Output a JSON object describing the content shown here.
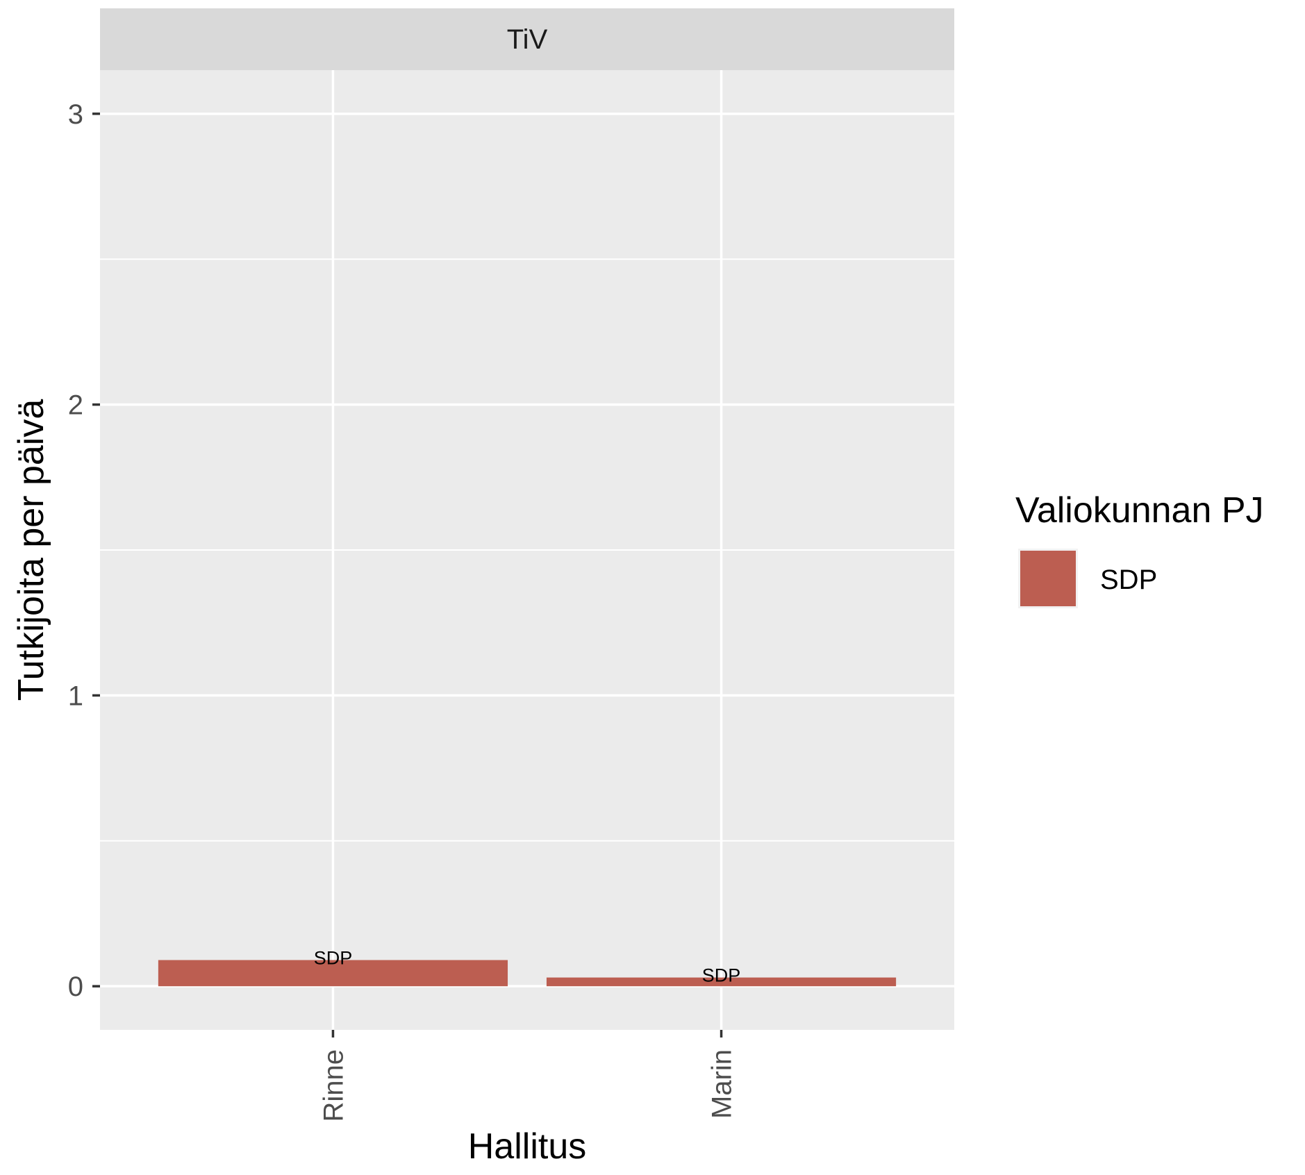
{
  "chart_data": {
    "type": "bar",
    "facet": "TiV",
    "categories": [
      "Rinne",
      "Marin"
    ],
    "series": [
      {
        "name": "SDP",
        "values": [
          0.09,
          0.03
        ],
        "labels": [
          "SDP",
          "SDP"
        ],
        "color": "#BC5E51"
      }
    ],
    "xlabel": "Hallitus",
    "ylabel": "Tutkijoita per päivä",
    "ylim": [
      -0.15,
      3.15
    ],
    "yticks": [
      0,
      1,
      2,
      3
    ],
    "ytick_labels": [
      "0",
      "1",
      "2",
      "3"
    ],
    "grid": true,
    "legend": {
      "title": "Valiokunnan PJ",
      "position": "right",
      "entries": [
        {
          "label": "SDP",
          "color": "#BC5E51"
        }
      ]
    },
    "colors": {
      "panel": "#EBEBEB",
      "strip": "#D9D9D9",
      "grid": "#FFFFFF",
      "text": "#4D4D4D",
      "title_text": "#1A1A1A"
    }
  }
}
